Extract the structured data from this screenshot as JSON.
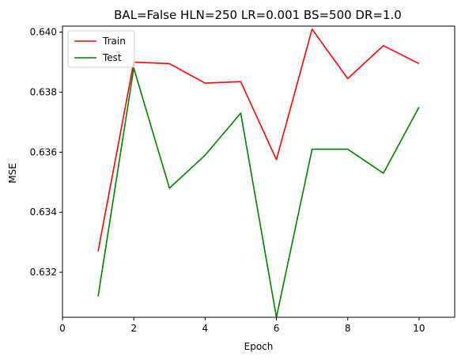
{
  "chart_data": {
    "type": "line",
    "title": "BAL=False HLN=250 LR=0.001 BS=500 DR=1.0",
    "xlabel": "Epoch",
    "ylabel": "MSE",
    "xlim": [
      0,
      11
    ],
    "ylim": [
      0.6305,
      0.6402
    ],
    "xticks": [
      0,
      2,
      4,
      6,
      8,
      10
    ],
    "yticks": [
      0.632,
      0.634,
      0.636,
      0.638,
      0.64
    ],
    "ytick_labels": [
      "0.632",
      "0.634",
      "0.636",
      "0.638",
      "0.640"
    ],
    "grid": false,
    "legend_position": "top-left",
    "x": [
      1,
      2,
      3,
      4,
      5,
      6,
      7,
      8,
      9,
      10
    ],
    "series": [
      {
        "name": "Train",
        "color": "#ff0000",
        "values": [
          0.6327,
          0.639,
          0.63895,
          0.6383,
          0.63835,
          0.63575,
          0.6401,
          0.63845,
          0.63955,
          0.63895
        ]
      },
      {
        "name": "Test",
        "color": "#008000",
        "values": [
          0.6312,
          0.6388,
          0.6348,
          0.6359,
          0.6373,
          0.6305,
          0.6361,
          0.6361,
          0.6353,
          0.6375
        ]
      }
    ]
  }
}
